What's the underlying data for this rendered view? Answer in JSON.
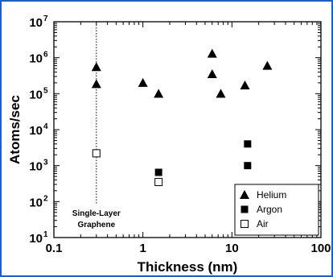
{
  "chart_data": {
    "type": "scatter",
    "title": "",
    "xlabel": "Thickness (nm)",
    "ylabel": "Atoms/sec",
    "xscale": "log",
    "yscale": "log",
    "xlim": [
      0.1,
      100
    ],
    "ylim": [
      10,
      10000000
    ],
    "x_ticks": [
      {
        "value": 0.1,
        "label": "0.1"
      },
      {
        "value": 1,
        "label": "1"
      },
      {
        "value": 10,
        "label": "10"
      },
      {
        "value": 100,
        "label": "100"
      }
    ],
    "y_ticks": [
      {
        "value": 10,
        "base": "10",
        "exp": "1"
      },
      {
        "value": 100,
        "base": "10",
        "exp": "2"
      },
      {
        "value": 1000,
        "base": "10",
        "exp": "3"
      },
      {
        "value": 10000,
        "base": "10",
        "exp": "4"
      },
      {
        "value": 100000,
        "base": "10",
        "exp": "5"
      },
      {
        "value": 1000000,
        "base": "10",
        "exp": "6"
      },
      {
        "value": 10000000,
        "base": "10",
        "exp": "7"
      }
    ],
    "grid": false,
    "legend": "bottom-right",
    "series": [
      {
        "name": "Helium",
        "marker": "filled-triangle",
        "color": "#000000",
        "points": [
          {
            "x": 0.3,
            "y": 550000
          },
          {
            "x": 0.3,
            "y": 185000
          },
          {
            "x": 1.0,
            "y": 200000
          },
          {
            "x": 1.5,
            "y": 100000
          },
          {
            "x": 6.0,
            "y": 1300000
          },
          {
            "x": 6.0,
            "y": 350000
          },
          {
            "x": 7.5,
            "y": 100000
          },
          {
            "x": 14.0,
            "y": 170000
          },
          {
            "x": 25.0,
            "y": 600000
          }
        ]
      },
      {
        "name": "Argon",
        "marker": "filled-square",
        "color": "#000000",
        "points": [
          {
            "x": 1.5,
            "y": 650
          },
          {
            "x": 15.0,
            "y": 4000
          },
          {
            "x": 15.0,
            "y": 1000
          }
        ]
      },
      {
        "name": "Air",
        "marker": "open-square",
        "color": "#000000",
        "points": [
          {
            "x": 0.3,
            "y": 2200
          },
          {
            "x": 1.5,
            "y": 350
          }
        ]
      }
    ],
    "annotations": [
      {
        "text_line1": "Single-Layer",
        "text_line2": "Graphene",
        "x": 0.3,
        "style": "dotted-vertical-line"
      }
    ]
  }
}
